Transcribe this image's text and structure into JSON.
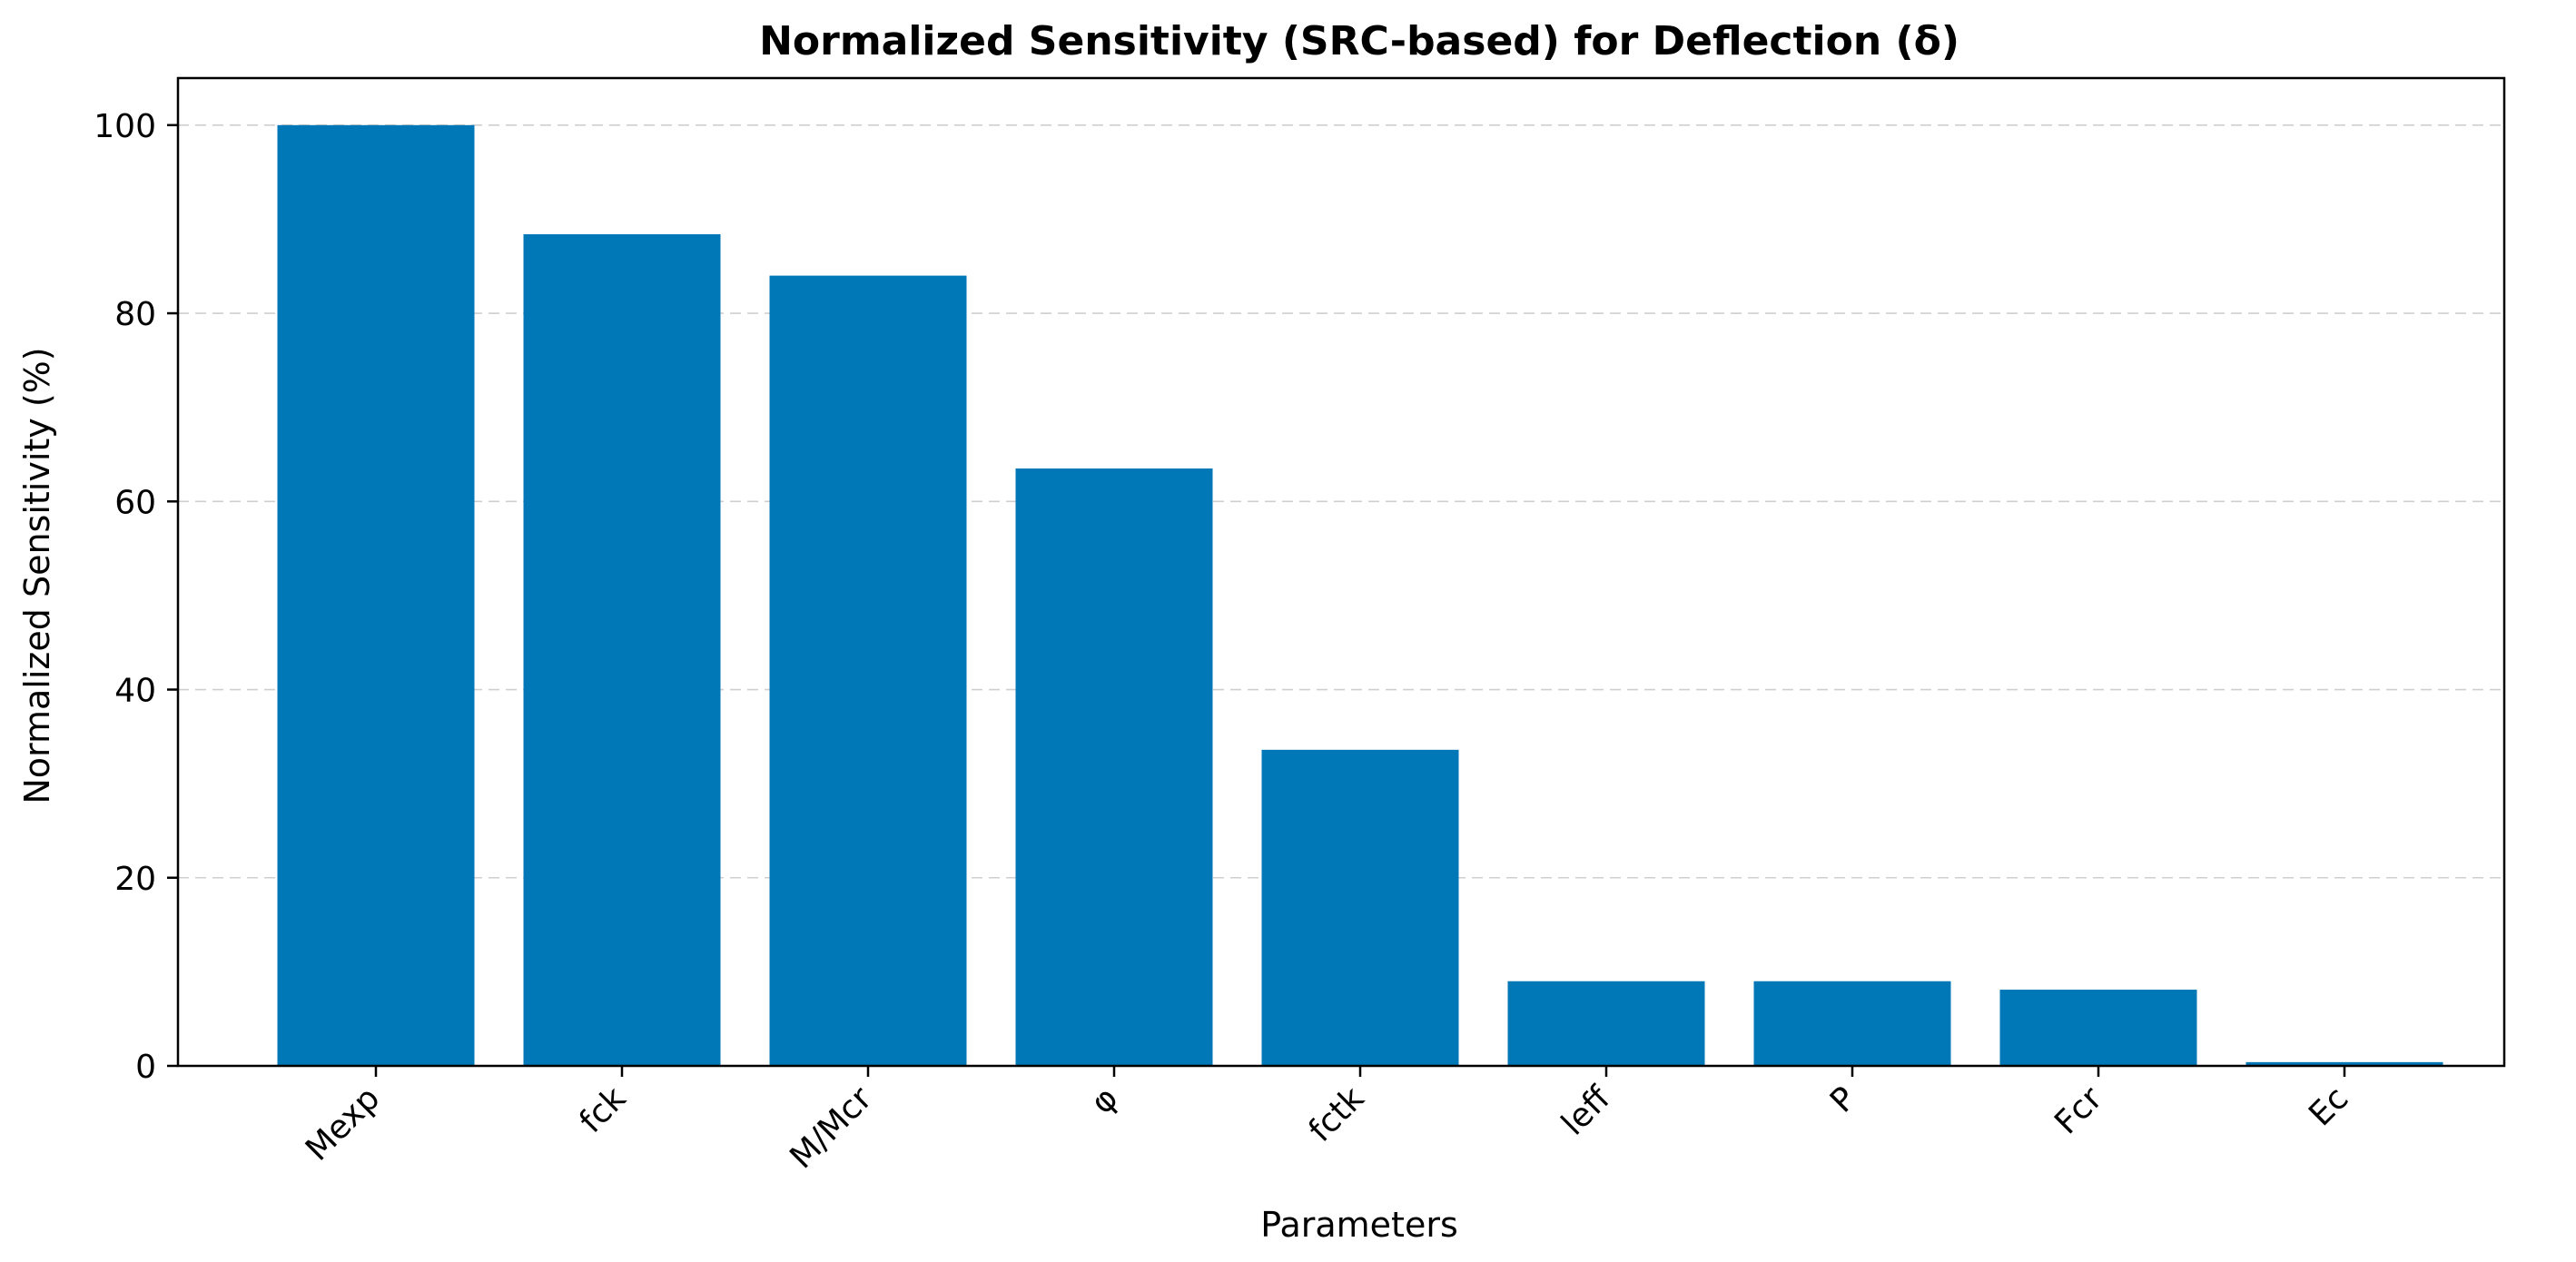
{
  "chart_data": {
    "type": "bar",
    "title": "Normalized Sensitivity (SRC-based) for Deflection (δ)",
    "xlabel": "Parameters",
    "ylabel": "Normalized Sensitivity (%)",
    "categories": [
      "Mexp",
      "fck",
      "M/Mcr",
      "φ",
      "fctk",
      "leff",
      "P",
      "Fcr",
      "Ec"
    ],
    "values": [
      100,
      88.4,
      84.0,
      63.5,
      33.6,
      9.0,
      9.0,
      8.1,
      0.4
    ],
    "ylim": [
      0,
      105
    ],
    "yticks": [
      0,
      20,
      40,
      60,
      80,
      100
    ],
    "grid": "y-dashed",
    "bar_color": "#0077b6",
    "legend": "none"
  }
}
